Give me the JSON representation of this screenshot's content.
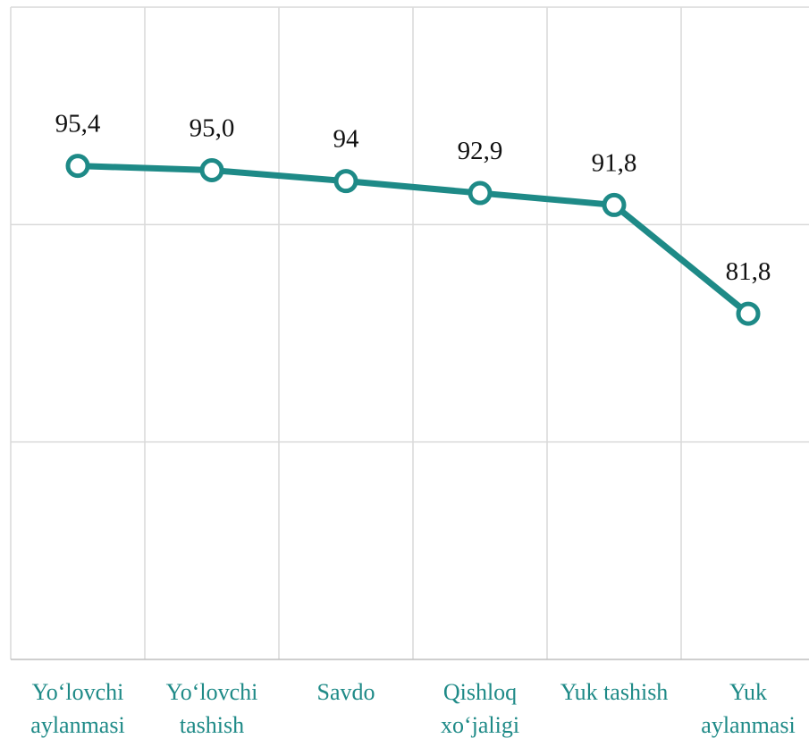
{
  "chart_data": {
    "type": "line",
    "categories": [
      "Yo‘lovchi aylanmasi",
      "Yo‘lovchi tashish",
      "Savdo",
      "Qishloq xo‘jaligi",
      "Yuk tashish",
      "Yuk aylanmasi"
    ],
    "values": [
      95.4,
      95.0,
      94,
      92.9,
      91.8,
      81.8
    ],
    "value_labels": [
      "95,4",
      "95,0",
      "94",
      "92,9",
      "91,8",
      "81,8"
    ],
    "color": "#1e8a87",
    "ylim": [
      50,
      110
    ],
    "yticks": [
      50,
      70,
      90,
      110
    ],
    "grid": true
  }
}
